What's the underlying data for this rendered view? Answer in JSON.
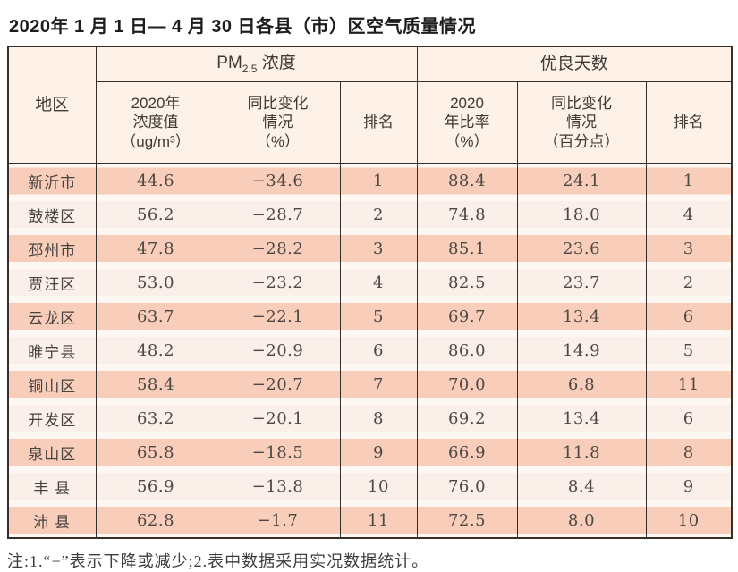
{
  "title": "2020年 1 月 1 日— 4 月 30 日各县（市）区空气质量情况",
  "table": {
    "header": {
      "region": "地区",
      "pm_group": {
        "prefix": "PM",
        "sub": "2.5",
        "suffix": " 浓度"
      },
      "days_group": "优良天数",
      "pm_cols": [
        "2020年\n浓度值\n（ug/m³）",
        "同比变化\n情况\n（%）",
        "排名"
      ],
      "days_cols": [
        "2020\n年比率\n（%）",
        "同比变化\n情况\n（百分点）",
        "排名"
      ]
    },
    "rows": [
      {
        "region": "新沂市",
        "pm_value": "44.6",
        "pm_change": "−34.6",
        "pm_rank": "1",
        "days_rate": "88.4",
        "days_change": "24.1",
        "days_rank": "1"
      },
      {
        "region": "鼓楼区",
        "pm_value": "56.2",
        "pm_change": "−28.7",
        "pm_rank": "2",
        "days_rate": "74.8",
        "days_change": "18.0",
        "days_rank": "4"
      },
      {
        "region": "邳州市",
        "pm_value": "47.8",
        "pm_change": "−28.2",
        "pm_rank": "3",
        "days_rate": "85.1",
        "days_change": "23.6",
        "days_rank": "3"
      },
      {
        "region": "贾汪区",
        "pm_value": "53.0",
        "pm_change": "−23.2",
        "pm_rank": "4",
        "days_rate": "82.5",
        "days_change": "23.7",
        "days_rank": "2"
      },
      {
        "region": "云龙区",
        "pm_value": "63.7",
        "pm_change": "−22.1",
        "pm_rank": "5",
        "days_rate": "69.7",
        "days_change": "13.4",
        "days_rank": "6"
      },
      {
        "region": "睢宁县",
        "pm_value": "48.2",
        "pm_change": "−20.9",
        "pm_rank": "6",
        "days_rate": "86.0",
        "days_change": "14.9",
        "days_rank": "5"
      },
      {
        "region": "铜山区",
        "pm_value": "58.4",
        "pm_change": "−20.7",
        "pm_rank": "7",
        "days_rate": "70.0",
        "days_change": "6.8",
        "days_rank": "11"
      },
      {
        "region": "开发区",
        "pm_value": "63.2",
        "pm_change": "−20.1",
        "pm_rank": "8",
        "days_rate": "69.2",
        "days_change": "13.4",
        "days_rank": "6"
      },
      {
        "region": "泉山区",
        "pm_value": "65.8",
        "pm_change": "−18.5",
        "pm_rank": "9",
        "days_rate": "66.9",
        "days_change": "11.8",
        "days_rank": "8"
      },
      {
        "region": "丰 县",
        "pm_value": "56.9",
        "pm_change": "−13.8",
        "pm_rank": "10",
        "days_rate": "76.0",
        "days_change": "8.4",
        "days_rank": "9"
      },
      {
        "region": "沛 县",
        "pm_value": "62.8",
        "pm_change": "−1.7",
        "pm_rank": "11",
        "days_rate": "72.5",
        "days_change": "8.0",
        "days_rank": "10"
      }
    ]
  },
  "note": "注:1.“−”表示下降或减少;2.表中数据采用实况数据统计。",
  "colors": {
    "row_salmon": "#f8cdba",
    "row_light": "#fbefe9",
    "header_bg": "#fdf1e8",
    "border": "#332f2b"
  }
}
